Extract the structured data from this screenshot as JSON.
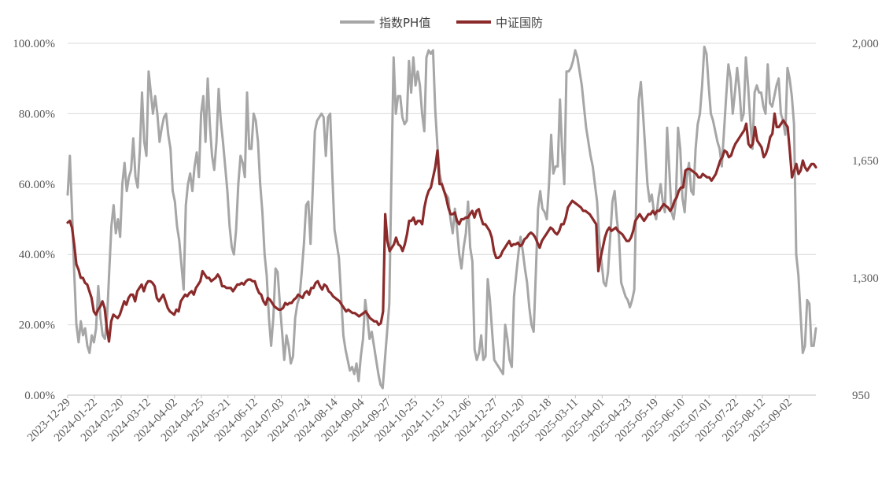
{
  "chart_data": {
    "type": "line",
    "legend": {
      "placement": "top-center"
    },
    "grid": {
      "horizontal": true,
      "vertical": false
    },
    "y_left": {
      "ticks": [
        "0.00%",
        "20.00%",
        "40.00%",
        "60.00%",
        "80.00%",
        "100.00%"
      ],
      "tick_values": [
        0,
        20,
        40,
        60,
        80,
        100
      ],
      "range": [
        0,
        100
      ]
    },
    "y_right": {
      "ticks": [
        "950",
        "1,300",
        "1,650",
        "2,000"
      ],
      "tick_values": [
        950,
        1300,
        1650,
        2000
      ],
      "range": [
        950,
        2000
      ]
    },
    "x_ticks": [
      "2023-12-29",
      "2024-01-22",
      "2024-02-20",
      "2024-03-12",
      "2024-04-02",
      "2024-04-25",
      "2024-05-21",
      "2024-06-12",
      "2024-07-03",
      "2024-07-24",
      "2024-08-14",
      "2024-09-04",
      "2024-09-27",
      "2024-10-25",
      "2024-11-15",
      "2024-12-06",
      "2024-12-27",
      "2025-01-20",
      "2025-02-18",
      "2025-03-11",
      "2025-04-01",
      "2025-04-23",
      "2025-05-19",
      "2025-06-10",
      "2025-07-01",
      "2025-07-22",
      "2025-08-12",
      "2025-09-02"
    ],
    "series": [
      {
        "name": "指数PH值",
        "axis": "left",
        "color": "#a6a6a6",
        "values": [
          57,
          68,
          52,
          35,
          20,
          15,
          21,
          17,
          19,
          14,
          12,
          17,
          15,
          19,
          31,
          22,
          17,
          16,
          22,
          35,
          48,
          54,
          46,
          50,
          45,
          60,
          66,
          58,
          62,
          64,
          73,
          62,
          59,
          70,
          86,
          72,
          68,
          92,
          86,
          80,
          85,
          80,
          72,
          76,
          79,
          80,
          74,
          70,
          58,
          55,
          48,
          44,
          37,
          30,
          54,
          60,
          63,
          58,
          65,
          69,
          62,
          80,
          85,
          72,
          90,
          77,
          68,
          64,
          72,
          87,
          78,
          72,
          65,
          58,
          48,
          42,
          40,
          47,
          60,
          68,
          66,
          62,
          86,
          70,
          70,
          80,
          78,
          72,
          60,
          52,
          40,
          34,
          22,
          14,
          22,
          36,
          35,
          26,
          18,
          10,
          17,
          14,
          9,
          11,
          22,
          26,
          28,
          35,
          43,
          54,
          55,
          43,
          58,
          75,
          78,
          79,
          80,
          79,
          68,
          79,
          80,
          62,
          47,
          43,
          39,
          28,
          17,
          13,
          10,
          7,
          8,
          6,
          9,
          4,
          11,
          16,
          27,
          22,
          16,
          18,
          14,
          10,
          6,
          3,
          2,
          10,
          18,
          26,
          62,
          96,
          80,
          85,
          85,
          79,
          77,
          78,
          95,
          86,
          96,
          88,
          92,
          88,
          80,
          75,
          96,
          98,
          97,
          98,
          81,
          71,
          63,
          60,
          58,
          57,
          56,
          50,
          46,
          53,
          47,
          40,
          36,
          42,
          46,
          55,
          42,
          38,
          13,
          10,
          12,
          17,
          10,
          11,
          33,
          27,
          18,
          10,
          9,
          8,
          7,
          6,
          20,
          16,
          10,
          8,
          28,
          34,
          40,
          45,
          41,
          36,
          32,
          25,
          20,
          18,
          35,
          53,
          58,
          53,
          52,
          50,
          60,
          74,
          63,
          65,
          65,
          84,
          70,
          60,
          92,
          92,
          93,
          95,
          98,
          96,
          92,
          88,
          82,
          76,
          72,
          68,
          65,
          60,
          55,
          44,
          38,
          32,
          31,
          35,
          45,
          55,
          58,
          50,
          45,
          32,
          30,
          28,
          27,
          25,
          27,
          30,
          60,
          84,
          89,
          80,
          70,
          60,
          55,
          57,
          52,
          50,
          56,
          60,
          55,
          52,
          76,
          64,
          52,
          50,
          55,
          76,
          70,
          56,
          52,
          62,
          66,
          58,
          57,
          70,
          77,
          80,
          88,
          99,
          97,
          88,
          80,
          78,
          75,
          72,
          70,
          65,
          75,
          85,
          94,
          90,
          80,
          86,
          93,
          87,
          78,
          80,
          96,
          88,
          78,
          70,
          86,
          88,
          86,
          86,
          82,
          80,
          94,
          83,
          82,
          85,
          88,
          90,
          80,
          78,
          74,
          93,
          90,
          85,
          77,
          40,
          34,
          23,
          12,
          14,
          27,
          26,
          14,
          14,
          19
        ]
      },
      {
        "name": "中证国防",
        "axis": "right",
        "color": "#8b2a2a",
        "values": [
          1465,
          1470,
          1450,
          1400,
          1340,
          1325,
          1300,
          1300,
          1285,
          1280,
          1260,
          1240,
          1200,
          1190,
          1205,
          1215,
          1230,
          1210,
          1150,
          1110,
          1170,
          1190,
          1185,
          1180,
          1190,
          1210,
          1230,
          1220,
          1240,
          1250,
          1250,
          1230,
          1260,
          1270,
          1280,
          1260,
          1280,
          1290,
          1290,
          1285,
          1275,
          1240,
          1230,
          1240,
          1250,
          1230,
          1210,
          1200,
          1195,
          1190,
          1205,
          1200,
          1230,
          1240,
          1250,
          1245,
          1255,
          1260,
          1250,
          1270,
          1280,
          1290,
          1320,
          1310,
          1300,
          1300,
          1290,
          1295,
          1300,
          1310,
          1300,
          1275,
          1275,
          1270,
          1270,
          1270,
          1260,
          1270,
          1280,
          1280,
          1285,
          1280,
          1290,
          1295,
          1295,
          1290,
          1290,
          1270,
          1255,
          1250,
          1230,
          1220,
          1240,
          1235,
          1225,
          1215,
          1210,
          1205,
          1205,
          1210,
          1225,
          1220,
          1225,
          1225,
          1235,
          1240,
          1250,
          1245,
          1240,
          1255,
          1260,
          1250,
          1270,
          1270,
          1285,
          1290,
          1275,
          1265,
          1280,
          1275,
          1260,
          1255,
          1245,
          1240,
          1235,
          1230,
          1220,
          1210,
          1200,
          1205,
          1200,
          1195,
          1195,
          1190,
          1185,
          1190,
          1195,
          1200,
          1190,
          1180,
          1175,
          1170,
          1170,
          1160,
          1165,
          1200,
          1490,
          1410,
          1380,
          1390,
          1400,
          1420,
          1400,
          1395,
          1380,
          1400,
          1430,
          1470,
          1470,
          1480,
          1460,
          1470,
          1470,
          1460,
          1510,
          1540,
          1560,
          1570,
          1600,
          1630,
          1680,
          1580,
          1580,
          1560,
          1540,
          1510,
          1490,
          1490,
          1495,
          1470,
          1460,
          1475,
          1475,
          1480,
          1480,
          1490,
          1500,
          1480,
          1500,
          1505,
          1480,
          1460,
          1460,
          1450,
          1440,
          1420,
          1380,
          1360,
          1360,
          1365,
          1380,
          1390,
          1400,
          1410,
          1395,
          1400,
          1400,
          1405,
          1395,
          1400,
          1415,
          1420,
          1430,
          1435,
          1430,
          1420,
          1405,
          1390,
          1410,
          1420,
          1430,
          1440,
          1450,
          1445,
          1435,
          1430,
          1440,
          1460,
          1460,
          1480,
          1510,
          1520,
          1530,
          1525,
          1520,
          1515,
          1510,
          1500,
          1500,
          1495,
          1490,
          1480,
          1470,
          1460,
          1320,
          1360,
          1390,
          1420,
          1440,
          1450,
          1440,
          1445,
          1450,
          1440,
          1435,
          1430,
          1420,
          1410,
          1410,
          1420,
          1440,
          1470,
          1480,
          1490,
          1480,
          1470,
          1480,
          1490,
          1490,
          1500,
          1490,
          1500,
          1500,
          1510,
          1520,
          1515,
          1510,
          1500,
          1510,
          1530,
          1540,
          1560,
          1570,
          1570,
          1620,
          1625,
          1625,
          1620,
          1615,
          1610,
          1600,
          1600,
          1610,
          1605,
          1600,
          1600,
          1590,
          1600,
          1610,
          1630,
          1650,
          1660,
          1680,
          1675,
          1660,
          1665,
          1685,
          1700,
          1710,
          1720,
          1730,
          1740,
          1760,
          1700,
          1690,
          1700,
          1750,
          1710,
          1700,
          1690,
          1660,
          1670,
          1690,
          1720,
          1730,
          1790,
          1750,
          1750,
          1760,
          1770,
          1760,
          1750,
          1680,
          1600,
          1620,
          1640,
          1610,
          1620,
          1650,
          1630,
          1620,
          1630,
          1640,
          1640,
          1630
        ]
      }
    ]
  }
}
